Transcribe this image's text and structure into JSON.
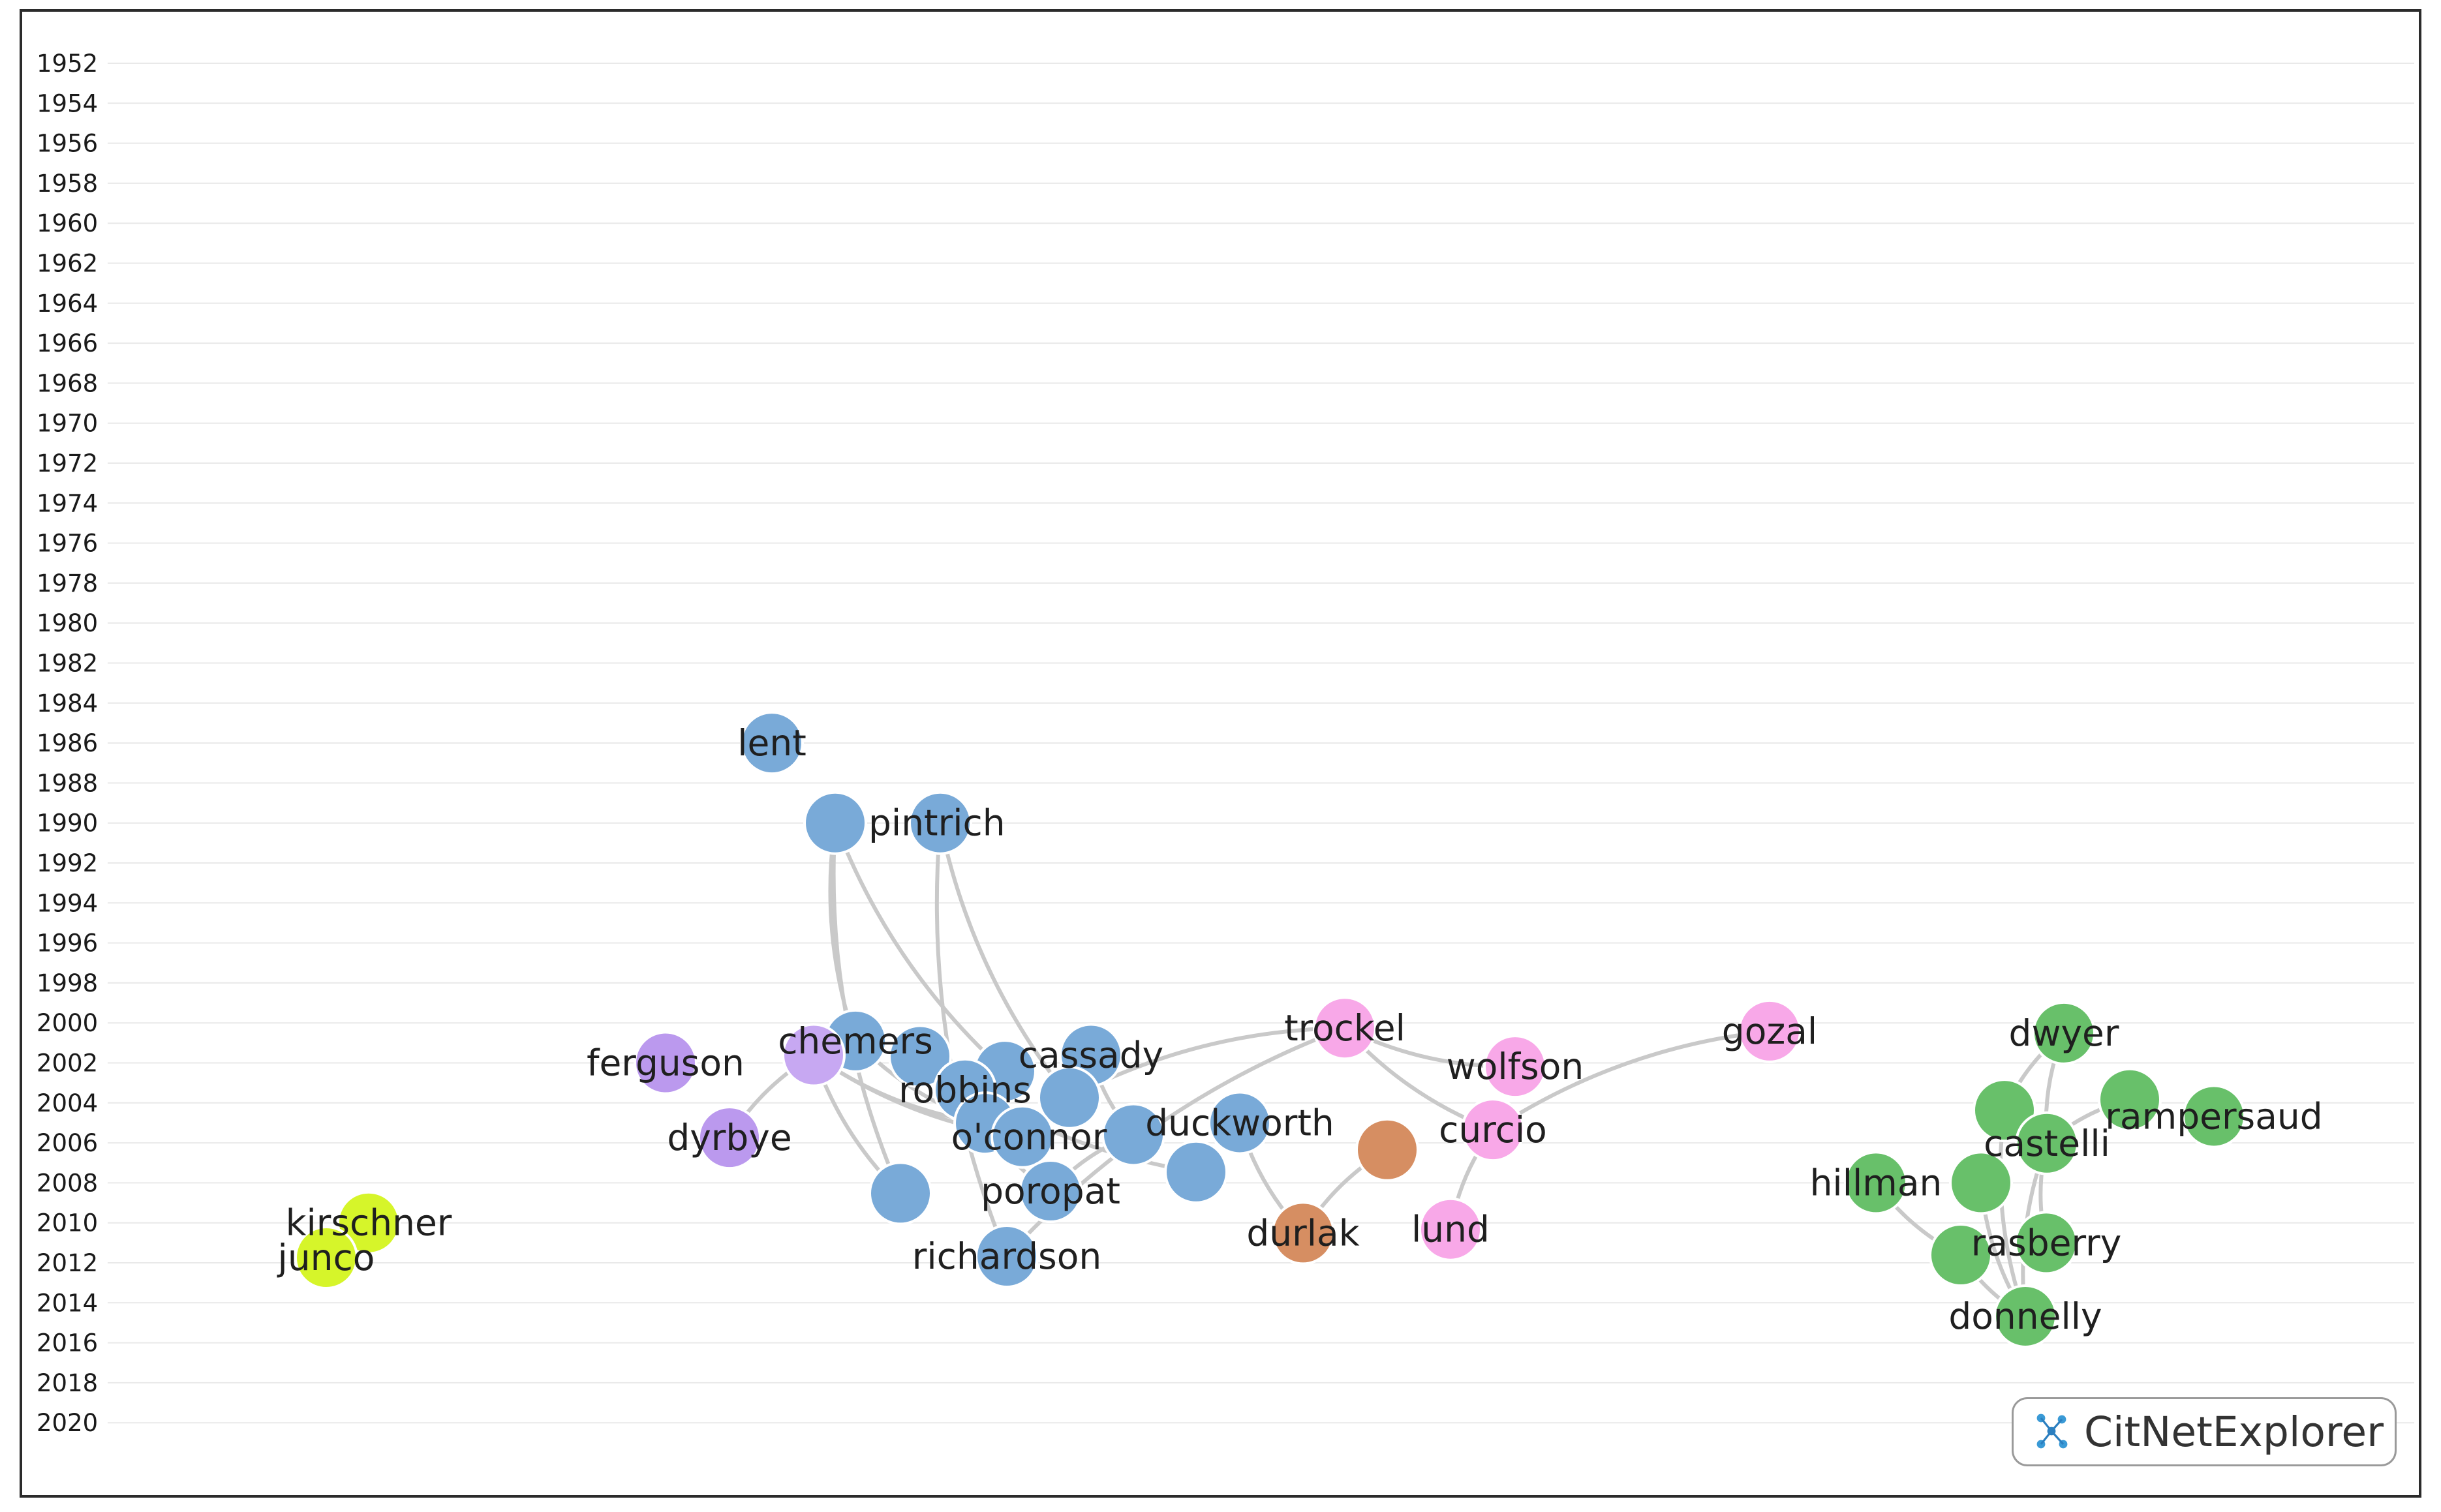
{
  "app": {
    "brand": "CitNetExplorer"
  },
  "icons": {
    "brand": "citnet-network-icon"
  },
  "colors": {
    "blue": "#79aad8",
    "purple": "#bb99ee",
    "lavender": "#c7a8f2",
    "pink": "#f8a8e8",
    "orange": "#d68e62",
    "green": "#68c06a",
    "lime": "#d6f52a",
    "edge": "#c9c9c9"
  },
  "timeline": {
    "years": [
      "1952",
      "1954",
      "1956",
      "1958",
      "1960",
      "1962",
      "1964",
      "1966",
      "1968",
      "1970",
      "1972",
      "1974",
      "1976",
      "1978",
      "1980",
      "1982",
      "1984",
      "1986",
      "1988",
      "1990",
      "1992",
      "1994",
      "1996",
      "1998",
      "2000",
      "2002",
      "2004",
      "2006",
      "2008",
      "2010",
      "2012",
      "2014",
      "2016",
      "2018",
      "2020"
    ]
  },
  "nodes": [
    {
      "id": "lent",
      "label": "lent",
      "year": 1986,
      "col": "blue"
    },
    {
      "id": "pintrich_a",
      "label": "",
      "year": 1990,
      "col": "blue"
    },
    {
      "id": "pintrich",
      "label": "pintrich",
      "year": 1990,
      "col": "blue"
    },
    {
      "id": "chemers",
      "label": "chemers",
      "year": 2001,
      "col": "blue"
    },
    {
      "id": "b2",
      "label": "",
      "year": 2002,
      "col": "blue"
    },
    {
      "id": "b3",
      "label": "",
      "year": 2003,
      "col": "blue"
    },
    {
      "id": "cassady",
      "label": "cassady",
      "year": 2002,
      "col": "blue"
    },
    {
      "id": "robbins",
      "label": "robbins",
      "year": 2004,
      "col": "blue"
    },
    {
      "id": "b4",
      "label": "",
      "year": 2004,
      "col": "blue"
    },
    {
      "id": "b5",
      "label": "",
      "year": 2005,
      "col": "blue"
    },
    {
      "id": "duckworth",
      "label": "duckworth",
      "year": 2005,
      "col": "blue"
    },
    {
      "id": "b6",
      "label": "",
      "year": 2006,
      "col": "blue"
    },
    {
      "id": "oconnor",
      "label": "o'connor",
      "year": 2007,
      "col": "blue"
    },
    {
      "id": "b7",
      "label": "",
      "year": 2007,
      "col": "blue"
    },
    {
      "id": "b8",
      "label": "",
      "year": 2008,
      "col": "blue"
    },
    {
      "id": "poropat",
      "label": "poropat",
      "year": 2009,
      "col": "blue"
    },
    {
      "id": "richardson",
      "label": "richardson",
      "year": 2012,
      "col": "blue"
    },
    {
      "id": "ferguson",
      "label": "ferguson",
      "year": 2002,
      "col": "purple"
    },
    {
      "id": "p2",
      "label": "",
      "year": 2002,
      "col": "lavender"
    },
    {
      "id": "dyrbye",
      "label": "dyrbye",
      "year": 2006,
      "col": "purple"
    },
    {
      "id": "trockel",
      "label": "trockel",
      "year": 2000,
      "col": "pink"
    },
    {
      "id": "wolfson",
      "label": "wolfson",
      "year": 2003,
      "col": "pink"
    },
    {
      "id": "gozal",
      "label": "gozal",
      "year": 2001,
      "col": "pink"
    },
    {
      "id": "curcio",
      "label": "curcio",
      "year": 2006,
      "col": "pink"
    },
    {
      "id": "lund",
      "label": "lund",
      "year": 2010,
      "col": "pink"
    },
    {
      "id": "o1",
      "label": "",
      "year": 2007,
      "col": "orange"
    },
    {
      "id": "durlak",
      "label": "durlak",
      "year": 2011,
      "col": "orange"
    },
    {
      "id": "dwyer",
      "label": "dwyer",
      "year": 2001,
      "col": "green"
    },
    {
      "id": "g2",
      "label": "",
      "year": 2004,
      "col": "green"
    },
    {
      "id": "rampersaud",
      "label": "rampersaud",
      "year": 2005,
      "col": "green"
    },
    {
      "id": "g3",
      "label": "",
      "year": 2006,
      "col": "green"
    },
    {
      "id": "castelli",
      "label": "castelli",
      "year": 2007,
      "col": "green"
    },
    {
      "id": "hillman",
      "label": "hillman",
      "year": 2008,
      "col": "green"
    },
    {
      "id": "g4",
      "label": "",
      "year": 2008,
      "col": "green"
    },
    {
      "id": "rasberry",
      "label": "rasberry",
      "year": 2011,
      "col": "green"
    },
    {
      "id": "g5",
      "label": "",
      "year": 2012,
      "col": "green"
    },
    {
      "id": "donnelly",
      "label": "donnelly",
      "year": 2015,
      "col": "green"
    },
    {
      "id": "kirschner",
      "label": "kirschner",
      "year": 2010,
      "col": "lime"
    },
    {
      "id": "junco",
      "label": "junco",
      "year": 2012,
      "col": "lime"
    }
  ],
  "edges": [
    [
      "pintrich_a",
      "chemers"
    ],
    [
      "pintrich_a",
      "b3"
    ],
    [
      "pintrich_a",
      "b8"
    ],
    [
      "pintrich",
      "b4"
    ],
    [
      "pintrich",
      "richardson"
    ],
    [
      "p2",
      "b6"
    ],
    [
      "p2",
      "b8"
    ],
    [
      "p2",
      "dyrbye"
    ],
    [
      "p2",
      "oconnor"
    ],
    [
      "chemers",
      "b6"
    ],
    [
      "b2",
      "b7"
    ],
    [
      "cassady",
      "b5"
    ],
    [
      "b5",
      "poropat"
    ],
    [
      "b6",
      "poropat"
    ],
    [
      "trockel",
      "b4"
    ],
    [
      "trockel",
      "wolfson"
    ],
    [
      "trockel",
      "curcio"
    ],
    [
      "trockel",
      "richardson"
    ],
    [
      "gozal",
      "curcio"
    ],
    [
      "curcio",
      "lund"
    ],
    [
      "o1",
      "durlak"
    ],
    [
      "duckworth",
      "durlak"
    ],
    [
      "dwyer",
      "g3"
    ],
    [
      "dwyer",
      "castelli"
    ],
    [
      "g2",
      "castelli"
    ],
    [
      "hillman",
      "g5"
    ],
    [
      "castelli",
      "donnelly"
    ],
    [
      "g3",
      "donnelly"
    ],
    [
      "g4",
      "donnelly"
    ],
    [
      "g5",
      "donnelly"
    ],
    [
      "castelli",
      "rasberry"
    ],
    [
      "kirschner",
      "junco"
    ]
  ]
}
